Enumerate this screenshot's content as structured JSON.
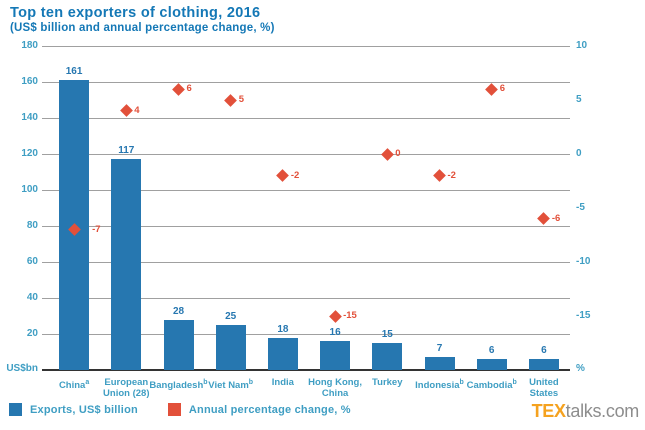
{
  "chart_data": {
    "type": "bar",
    "title": "Top ten exporters of clothing, 2016",
    "subtitle": "(US$ billion and annual percentage change, %)",
    "categories": [
      {
        "lines": [
          "China"
        ],
        "sup": "a"
      },
      {
        "lines": [
          "European",
          "Union (28)"
        ],
        "sup": ""
      },
      {
        "lines": [
          "Bangladesh"
        ],
        "sup": "b"
      },
      {
        "lines": [
          "Viet Nam"
        ],
        "sup": "b"
      },
      {
        "lines": [
          "India"
        ],
        "sup": ""
      },
      {
        "lines": [
          "Hong Kong,",
          "China"
        ],
        "sup": ""
      },
      {
        "lines": [
          "Turkey"
        ],
        "sup": ""
      },
      {
        "lines": [
          "Indonesia"
        ],
        "sup": "b"
      },
      {
        "lines": [
          "Cambodia"
        ],
        "sup": "b"
      },
      {
        "lines": [
          "United",
          "States"
        ],
        "sup": ""
      }
    ],
    "series": [
      {
        "name": "Exports, US$ billion",
        "type": "bar",
        "axis": "left",
        "values": [
          161,
          117,
          28,
          25,
          18,
          16,
          15,
          7,
          6,
          6
        ]
      },
      {
        "name": "Annual percentage change, %",
        "type": "scatter",
        "marker": "diamond",
        "axis": "right",
        "values": [
          -7,
          4,
          6,
          5,
          -2,
          -15,
          0,
          -2,
          6,
          -6
        ]
      }
    ],
    "left_axis": {
      "label": "US$bn",
      "min": 0,
      "max": 180,
      "ticks": [
        180,
        160,
        140,
        120,
        100,
        80,
        60,
        40,
        20
      ]
    },
    "right_axis": {
      "label": "%",
      "min": -20,
      "max": 10,
      "ticks": [
        10,
        5,
        0,
        -5,
        -10,
        -15
      ]
    },
    "grid": true,
    "legend_position": "bottom-left"
  },
  "watermark": {
    "brand_bold": "TEX",
    "brand_rest": "talks.com"
  },
  "colors": {
    "title_blue": "#1478b6",
    "bar_blue": "#2677b0",
    "marker_red": "#e2503a",
    "axis_teal": "#3f9ec3",
    "grid_gray": "#a0a0a0",
    "baseline_dark": "#333333",
    "logo_orange": "#f5a21f",
    "logo_gray": "#8d8d8d"
  }
}
